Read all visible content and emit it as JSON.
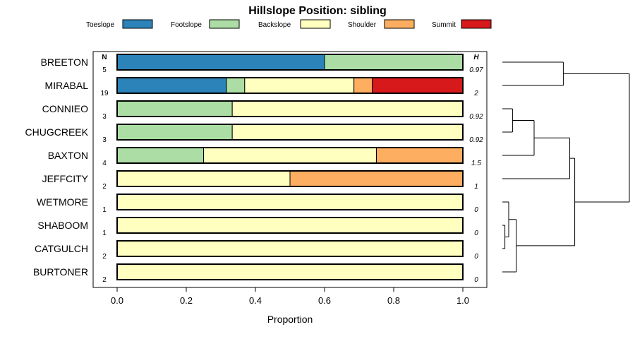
{
  "chart_data": {
    "type": "stacked-horizontal-bar",
    "title": "Hillslope Position: sibling",
    "xlabel": "Proportion",
    "xlim": [
      0,
      1
    ],
    "x_ticks": [
      "0.0",
      "0.2",
      "0.4",
      "0.6",
      "0.8",
      "1.0"
    ],
    "n_header": "N",
    "h_header": "H",
    "legend": [
      {
        "name": "Toeslope",
        "color": "#2b83ba"
      },
      {
        "name": "Footslope",
        "color": "#abdda4"
      },
      {
        "name": "Backslope",
        "color": "#ffffbf"
      },
      {
        "name": "Shoulder",
        "color": "#fdae61"
      },
      {
        "name": "Summit",
        "color": "#d7191c"
      }
    ],
    "rows": [
      {
        "label": "BREETON",
        "n": "5",
        "h": "0.97",
        "values": [
          0.6,
          0.4,
          0,
          0,
          0
        ]
      },
      {
        "label": "MIRABAL",
        "n": "19",
        "h": "2",
        "values": [
          0.316,
          0.053,
          0.316,
          0.053,
          0.262
        ]
      },
      {
        "label": "CONNIEO",
        "n": "3",
        "h": "0.92",
        "values": [
          0,
          0.333,
          0.667,
          0,
          0
        ]
      },
      {
        "label": "CHUGCREEK",
        "n": "3",
        "h": "0.92",
        "values": [
          0,
          0.333,
          0.667,
          0,
          0
        ]
      },
      {
        "label": "BAXTON",
        "n": "4",
        "h": "1.5",
        "values": [
          0,
          0.25,
          0.5,
          0.25,
          0
        ]
      },
      {
        "label": "JEFFCITY",
        "n": "2",
        "h": "1",
        "values": [
          0,
          0,
          0.5,
          0.5,
          0
        ]
      },
      {
        "label": "WETMORE",
        "n": "1",
        "h": "0",
        "values": [
          0,
          0,
          1,
          0,
          0
        ]
      },
      {
        "label": "SHABOOM",
        "n": "1",
        "h": "0",
        "values": [
          0,
          0,
          1,
          0,
          0
        ]
      },
      {
        "label": "CATGULCH",
        "n": "2",
        "h": "0",
        "values": [
          0,
          0,
          1,
          0,
          0
        ]
      },
      {
        "label": "BURTONER",
        "n": "2",
        "h": "0",
        "values": [
          0,
          0,
          1,
          0,
          0
        ]
      }
    ],
    "dendrogram": {
      "leaves": [
        "BREETON",
        "MIRABAL",
        "CONNIEO",
        "CHUGCREEK",
        "BAXTON",
        "JEFFCITY",
        "WETMORE",
        "SHABOOM",
        "CATGULCH",
        "BURTONER"
      ],
      "merges": [
        {
          "a": "SHABOOM",
          "b": "CATGULCH",
          "height": 0.02
        },
        {
          "a": "WETMORE",
          "b": "SHABOOM+CATGULCH",
          "height": 0.05
        },
        {
          "a": "BURTONER",
          "b": "WETMORE+SHABOOM+CATGULCH",
          "height": 0.11
        },
        {
          "a": "CONNIEO",
          "b": "CHUGCREEK",
          "height": 0.08
        },
        {
          "a": "BAXTON",
          "b": "CONNIEO+CHUGCREEK",
          "height": 0.25
        },
        {
          "a": "JEFFCITY",
          "b": "BAXTON+CONNIEO+CHUGCREEK",
          "height": 0.53
        },
        {
          "a": "BREETON",
          "b": "MIRABAL",
          "height": 0.48
        },
        {
          "a": "JEFFCITY+BAXTON+CONNIEO+CHUGCREEK",
          "b": "BURTONER+WETMORE+SHABOOM+CATGULCH",
          "height": 0.57
        },
        {
          "a": "BREETON+MIRABAL",
          "b": "REST",
          "height": 1.0
        }
      ]
    }
  }
}
